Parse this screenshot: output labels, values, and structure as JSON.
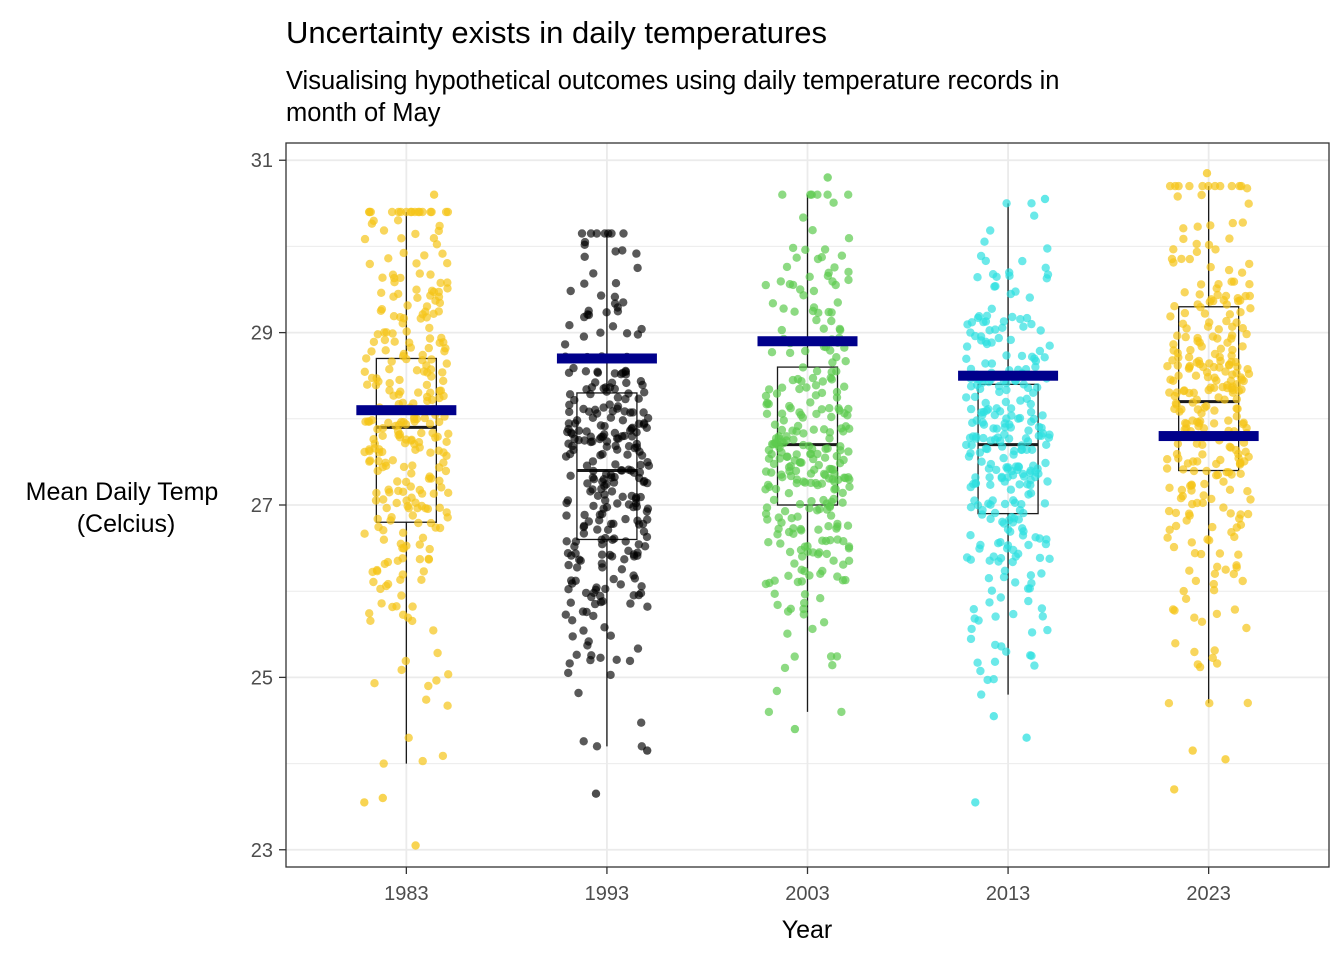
{
  "chart_data": {
    "type": "scatter",
    "title": "Uncertainty exists in daily temperatures",
    "subtitle_lines": [
      "Visualising hypothetical outcomes using daily temperature records in",
      "month of May"
    ],
    "xlabel": "Year",
    "ylabel_lines": [
      "Mean Daily Temp",
      "(Celcius)"
    ],
    "categories": [
      "1983",
      "1993",
      "2003",
      "2013",
      "2023"
    ],
    "yticks": [
      "23",
      "25",
      "27",
      "29",
      "31"
    ],
    "ylim": [
      22.8,
      31.2
    ],
    "grid": true,
    "legend": "none",
    "colors": {
      "1983": "#F5C518",
      "1993": "#000000",
      "2003": "#5CCB4F",
      "2013": "#2EE0E0",
      "2023": "#F5C518",
      "mean_bar": "#00008B",
      "box_line": "#1a1a1a",
      "grid": "#ebebeb",
      "panel_border": "#333333"
    },
    "series": [
      {
        "x": "1983",
        "n": 300,
        "min": 24.0,
        "q1": 26.8,
        "median": 27.9,
        "q3": 28.7,
        "max": 30.4,
        "mean": 28.1,
        "outliers": [
          23.55,
          23.05,
          23.6,
          30.6
        ]
      },
      {
        "x": "1993",
        "n": 300,
        "min": 24.2,
        "q1": 26.6,
        "median": 27.4,
        "q3": 28.3,
        "max": 30.15,
        "mean": 28.7,
        "outliers": [
          23.65,
          24.15
        ]
      },
      {
        "x": "2003",
        "n": 300,
        "min": 24.6,
        "q1": 27.0,
        "median": 27.7,
        "q3": 28.6,
        "max": 30.6,
        "mean": 28.9,
        "outliers": [
          30.8,
          24.4
        ]
      },
      {
        "x": "2013",
        "n": 300,
        "min": 24.8,
        "q1": 26.9,
        "median": 27.7,
        "q3": 28.4,
        "max": 30.5,
        "mean": 28.5,
        "outliers": [
          23.55,
          24.3,
          24.55,
          30.55
        ]
      },
      {
        "x": "2023",
        "n": 300,
        "min": 24.7,
        "q1": 27.4,
        "median": 28.2,
        "q3": 29.3,
        "max": 30.7,
        "mean": 27.8,
        "outliers": [
          30.85,
          23.7,
          24.05,
          24.15
        ]
      }
    ]
  }
}
